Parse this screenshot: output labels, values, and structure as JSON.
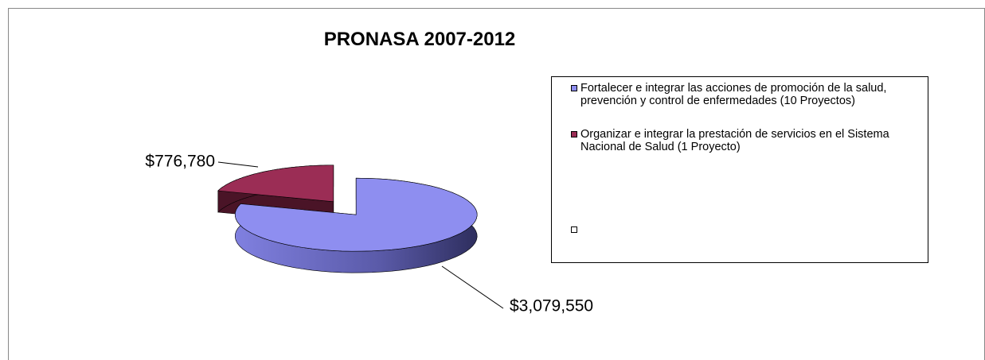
{
  "chart_data": {
    "type": "pie",
    "title": "PRONASA 2007-2012",
    "categories": [
      "Fortalecer e integrar las acciones de promoción de la salud, prevención y control de enfermedades (10 Proyectos)",
      "Organizar e integrar la prestación de servicios en el Sistema Nacional de Salud (1 Proyecto)"
    ],
    "values": [
      3079550,
      776780
    ],
    "value_labels": [
      "$3,079,550",
      "$776,780"
    ],
    "colors": [
      "#8e8ef0",
      "#9b2d55"
    ],
    "side_colors": [
      "#3c3c78",
      "#4a1427"
    ],
    "legend": "right",
    "three_d": true,
    "exploded": true
  }
}
